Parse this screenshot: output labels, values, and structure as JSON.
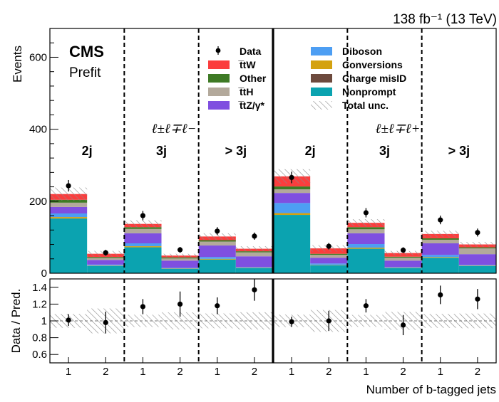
{
  "header": {
    "luminosity": "138 fb⁻¹ (13 TeV)",
    "experiment": "CMS",
    "status": "Prefit"
  },
  "chart_data": {
    "type": "bar",
    "stacked": true,
    "ylabel_top": "Events",
    "ylabel_bottom": "Data / Pred.",
    "xlabel": "Number of b-tagged jets",
    "ylim_top": [
      0,
      680
    ],
    "yticks_top": [
      "0",
      "200",
      "400",
      "600"
    ],
    "ylim_bottom": [
      0.5,
      1.5
    ],
    "yticks_bottom": [
      "0.6",
      "0.8",
      "1",
      "1.2",
      "1.4"
    ],
    "channels": [
      "ℓ±ℓ∓ℓ−",
      "ℓ±ℓ∓ℓ+"
    ],
    "regions": [
      "2j",
      "3j",
      "> 3j",
      "2j",
      "3j",
      "> 3j"
    ],
    "categories": [
      "1",
      "2",
      "1",
      "2",
      "1",
      "2",
      "1",
      "2",
      "1",
      "2",
      "1",
      "2"
    ],
    "colors": {
      "Nonprompt": "#0ba3b0",
      "Conversions": "#d4a210",
      "Diboson": "#4d9ef3",
      "ttZ": "#7f4fe0",
      "ttH": "#b3a99b",
      "Other": "#3e7a25",
      "ttW": "#fb3d3d",
      "ChargeMisID": "#6d4a3d",
      "Data": "#000000",
      "Unc": "#8a8a8a"
    },
    "legend": [
      {
        "key": "Data",
        "label": "Data",
        "kind": "marker"
      },
      {
        "key": "Diboson",
        "label": "Diboson",
        "kind": "box"
      },
      {
        "key": "ttW",
        "label": "t̅tW",
        "kind": "box"
      },
      {
        "key": "Conversions",
        "label": "Conversions",
        "kind": "box"
      },
      {
        "key": "Other",
        "label": "Other",
        "kind": "box"
      },
      {
        "key": "ChargeMisID",
        "label": "Charge misID",
        "kind": "box"
      },
      {
        "key": "ttH",
        "label": "t̅tH",
        "kind": "box"
      },
      {
        "key": "Nonprompt",
        "label": "Nonprompt",
        "kind": "box"
      },
      {
        "key": "ttZ",
        "label": "t̅tZ/γ*",
        "kind": "box"
      },
      {
        "key": "Unc",
        "label": "Total unc.",
        "kind": "hatch"
      }
    ],
    "series": [
      {
        "name": "Nonprompt",
        "values": [
          152,
          20,
          72,
          12,
          38,
          14,
          162,
          22,
          68,
          14,
          43,
          20
        ]
      },
      {
        "name": "Conversions",
        "values": [
          4,
          1,
          3,
          1,
          2,
          1,
          5,
          1,
          3,
          1,
          2,
          1
        ]
      },
      {
        "name": "Diboson",
        "values": [
          10,
          3,
          8,
          2,
          5,
          2,
          28,
          4,
          10,
          2,
          6,
          2
        ]
      },
      {
        "name": "ttZ",
        "values": [
          18,
          13,
          28,
          20,
          32,
          30,
          28,
          16,
          30,
          18,
          32,
          30
        ]
      },
      {
        "name": "ttH",
        "values": [
          12,
          5,
          12,
          6,
          11,
          11,
          10,
          8,
          11,
          8,
          10,
          16
        ]
      },
      {
        "name": "Other",
        "values": [
          8,
          3,
          5,
          3,
          4,
          3,
          8,
          3,
          6,
          3,
          4,
          3
        ]
      },
      {
        "name": "ttW",
        "values": [
          16,
          9,
          9,
          5,
          10,
          7,
          28,
          15,
          12,
          10,
          12,
          8
        ]
      }
    ],
    "total_unc": [
      18,
      8,
      10,
      5,
      9,
      7,
      20,
      9,
      10,
      6,
      9,
      7
    ],
    "data": [
      243,
      57,
      160,
      65,
      117,
      103,
      266,
      75,
      168,
      64,
      148,
      113
    ],
    "data_err": [
      16,
      8,
      13,
      8,
      11,
      10,
      16,
      9,
      13,
      8,
      12,
      11
    ],
    "ratio": [
      1.01,
      0.98,
      1.17,
      1.2,
      1.18,
      1.37,
      0.99,
      1.0,
      1.18,
      0.95,
      1.31,
      1.26
    ],
    "ratio_err": [
      0.07,
      0.13,
      0.09,
      0.15,
      0.1,
      0.13,
      0.06,
      0.12,
      0.08,
      0.12,
      0.11,
      0.12
    ]
  }
}
